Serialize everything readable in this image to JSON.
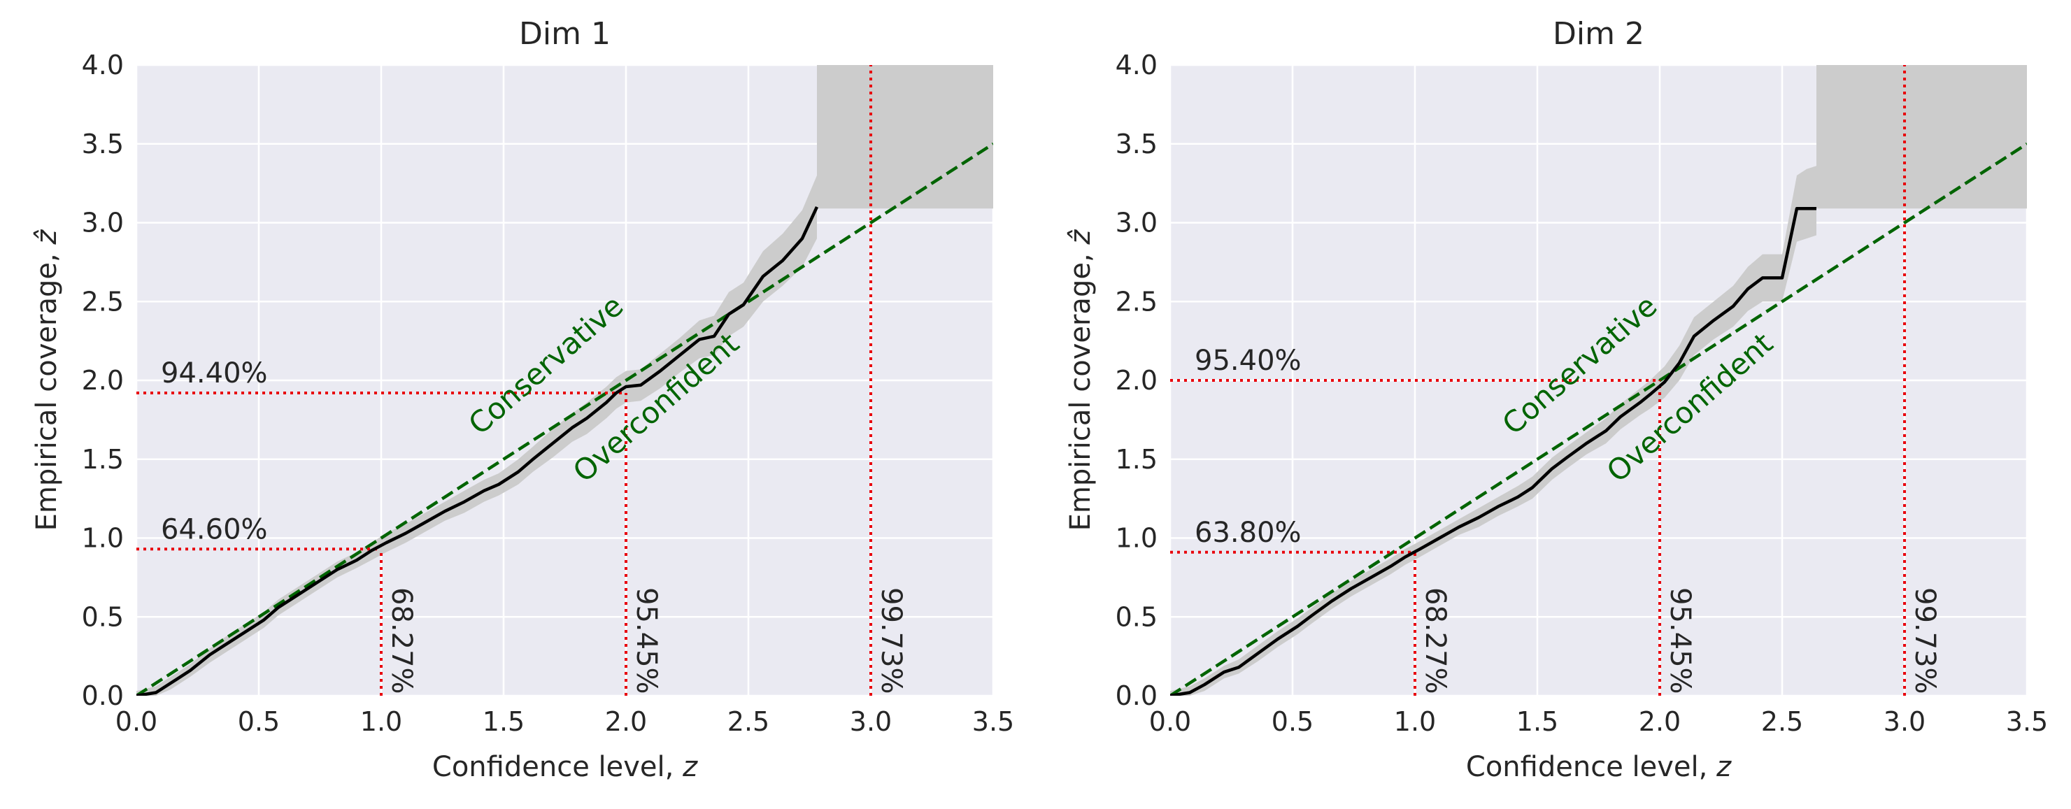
{
  "chart_data": [
    {
      "type": "line",
      "title": "Dim 1",
      "xlabel": "Confidence level, ",
      "xlabel_var": "z",
      "ylabel": "Empirical coverage, ",
      "ylabel_var": "ẑ",
      "xlim": [
        0,
        3.5
      ],
      "ylim": [
        0,
        4.0
      ],
      "xticks": [
        "0.0",
        "0.5",
        "1.0",
        "1.5",
        "2.0",
        "2.5",
        "3.0",
        "3.5"
      ],
      "yticks": [
        "0.0",
        "0.5",
        "1.0",
        "1.5",
        "2.0",
        "2.5",
        "3.0",
        "3.5",
        "4.0"
      ],
      "grid": true,
      "series": [
        {
          "style": "solid-black",
          "x": [
            0.0,
            0.08,
            0.14,
            0.22,
            0.3,
            0.36,
            0.44,
            0.52,
            0.58,
            0.66,
            0.74,
            0.82,
            0.9,
            0.96,
            1.02,
            1.1,
            1.18,
            1.26,
            1.34,
            1.42,
            1.48,
            1.56,
            1.62,
            1.7,
            1.78,
            1.84,
            1.92,
            1.96,
            2.0,
            2.06,
            2.14,
            2.22,
            2.3,
            2.36,
            2.42,
            2.48,
            2.56,
            2.64,
            2.72,
            2.78
          ],
          "y": [
            0.0,
            0.02,
            0.08,
            0.16,
            0.26,
            0.32,
            0.4,
            0.48,
            0.56,
            0.64,
            0.72,
            0.8,
            0.86,
            0.92,
            0.97,
            1.03,
            1.1,
            1.17,
            1.23,
            1.3,
            1.34,
            1.42,
            1.5,
            1.6,
            1.7,
            1.76,
            1.86,
            1.92,
            1.96,
            1.97,
            2.06,
            2.16,
            2.26,
            2.28,
            2.42,
            2.48,
            2.66,
            2.76,
            2.9,
            3.1
          ]
        }
      ],
      "band": {
        "x": [
          0.0,
          0.08,
          0.14,
          0.22,
          0.3,
          0.36,
          0.44,
          0.52,
          0.58,
          0.66,
          0.74,
          0.82,
          0.9,
          0.96,
          1.02,
          1.1,
          1.18,
          1.26,
          1.34,
          1.42,
          1.48,
          1.56,
          1.62,
          1.7,
          1.78,
          1.84,
          1.92,
          1.96,
          2.0,
          2.06,
          2.14,
          2.22,
          2.3,
          2.36,
          2.42,
          2.48,
          2.56,
          2.64,
          2.72,
          2.78
        ],
        "lower": [
          0.0,
          0.0,
          0.04,
          0.12,
          0.21,
          0.27,
          0.35,
          0.43,
          0.51,
          0.59,
          0.67,
          0.75,
          0.81,
          0.86,
          0.91,
          0.97,
          1.04,
          1.11,
          1.16,
          1.23,
          1.27,
          1.34,
          1.42,
          1.51,
          1.61,
          1.66,
          1.76,
          1.82,
          1.86,
          1.87,
          1.95,
          2.05,
          2.14,
          2.16,
          2.28,
          2.34,
          2.5,
          2.6,
          2.72,
          2.9
        ],
        "upper": [
          0.03,
          0.06,
          0.12,
          0.2,
          0.3,
          0.37,
          0.45,
          0.53,
          0.61,
          0.69,
          0.77,
          0.85,
          0.91,
          0.97,
          1.03,
          1.09,
          1.16,
          1.23,
          1.3,
          1.37,
          1.41,
          1.5,
          1.58,
          1.69,
          1.79,
          1.86,
          1.96,
          2.02,
          2.06,
          2.07,
          2.17,
          2.27,
          2.38,
          2.41,
          2.56,
          2.62,
          2.82,
          2.93,
          3.08,
          3.3
        ]
      },
      "corner_band": {
        "x": [
          2.78,
          3.5
        ],
        "lower": 3.09,
        "upper": 4.0
      },
      "reference_line": {
        "x": [
          0,
          3.5
        ],
        "y": [
          0,
          3.5
        ]
      },
      "thresholds": [
        {
          "x": 1.0,
          "y": 0.93,
          "x_label": "68.27%",
          "y_label": "64.60%"
        },
        {
          "x": 2.0,
          "y": 1.92,
          "x_label": "95.45%",
          "y_label": "94.40%"
        },
        {
          "x": 3.0,
          "y": null,
          "x_label": "99.73%",
          "y_label": null
        }
      ],
      "annotations": [
        {
          "text": "Conservative",
          "x": 1.7,
          "y": 2.05
        },
        {
          "text": "Overconfident",
          "x": 2.15,
          "y": 1.78
        }
      ],
      "colors": {
        "line": "#000000",
        "band": "#cccccc",
        "reference": "#006400",
        "threshold": "#e8000b",
        "annotation": "#006400",
        "background": "#eaeaf2",
        "grid": "#ffffff"
      }
    },
    {
      "type": "line",
      "title": "Dim 2",
      "xlabel": "Confidence level, ",
      "xlabel_var": "z",
      "ylabel": "Empirical coverage, ",
      "ylabel_var": "ẑ",
      "xlim": [
        0,
        3.5
      ],
      "ylim": [
        0,
        4.0
      ],
      "xticks": [
        "0.0",
        "0.5",
        "1.0",
        "1.5",
        "2.0",
        "2.5",
        "3.0",
        "3.5"
      ],
      "yticks": [
        "0.0",
        "0.5",
        "1.0",
        "1.5",
        "2.0",
        "2.5",
        "3.0",
        "3.5",
        "4.0"
      ],
      "grid": true,
      "series": [
        {
          "style": "solid-black",
          "x": [
            0.0,
            0.08,
            0.14,
            0.22,
            0.28,
            0.36,
            0.44,
            0.52,
            0.58,
            0.66,
            0.74,
            0.82,
            0.9,
            0.96,
            1.02,
            1.1,
            1.18,
            1.26,
            1.34,
            1.42,
            1.48,
            1.56,
            1.62,
            1.7,
            1.78,
            1.84,
            1.92,
            1.96,
            2.02,
            2.08,
            2.14,
            2.22,
            2.3,
            2.36,
            2.42,
            2.5,
            2.56,
            2.6,
            2.64
          ],
          "y": [
            0.0,
            0.02,
            0.07,
            0.15,
            0.18,
            0.27,
            0.36,
            0.44,
            0.51,
            0.6,
            0.68,
            0.75,
            0.82,
            0.88,
            0.93,
            1.0,
            1.07,
            1.13,
            1.2,
            1.26,
            1.32,
            1.44,
            1.51,
            1.6,
            1.68,
            1.77,
            1.86,
            1.91,
            1.99,
            2.11,
            2.28,
            2.38,
            2.47,
            2.58,
            2.65,
            2.65,
            3.09,
            3.09,
            3.09
          ]
        }
      ],
      "band": {
        "x": [
          0.0,
          0.08,
          0.14,
          0.22,
          0.28,
          0.36,
          0.44,
          0.52,
          0.58,
          0.66,
          0.74,
          0.82,
          0.9,
          0.96,
          1.02,
          1.1,
          1.18,
          1.26,
          1.34,
          1.42,
          1.48,
          1.56,
          1.62,
          1.7,
          1.78,
          1.84,
          1.92,
          1.96,
          2.02,
          2.08,
          2.14,
          2.22,
          2.3,
          2.36,
          2.42,
          2.5,
          2.56,
          2.6,
          2.64
        ],
        "lower": [
          0.0,
          0.0,
          0.03,
          0.11,
          0.14,
          0.22,
          0.31,
          0.39,
          0.46,
          0.55,
          0.63,
          0.7,
          0.77,
          0.83,
          0.88,
          0.95,
          1.02,
          1.07,
          1.14,
          1.2,
          1.25,
          1.37,
          1.44,
          1.53,
          1.6,
          1.69,
          1.78,
          1.82,
          1.89,
          2.0,
          2.16,
          2.26,
          2.34,
          2.44,
          2.5,
          2.5,
          2.88,
          2.9,
          2.92
        ],
        "upper": [
          0.03,
          0.06,
          0.11,
          0.19,
          0.23,
          0.32,
          0.41,
          0.49,
          0.56,
          0.65,
          0.73,
          0.8,
          0.87,
          0.93,
          0.98,
          1.05,
          1.12,
          1.19,
          1.26,
          1.33,
          1.39,
          1.51,
          1.58,
          1.67,
          1.76,
          1.85,
          1.95,
          2.0,
          2.09,
          2.22,
          2.4,
          2.5,
          2.6,
          2.72,
          2.8,
          2.8,
          3.3,
          3.34,
          3.36
        ]
      },
      "corner_band": {
        "x": [
          2.64,
          3.5
        ],
        "lower": 3.09,
        "upper": 4.0
      },
      "reference_line": {
        "x": [
          0,
          3.5
        ],
        "y": [
          0,
          3.5
        ]
      },
      "thresholds": [
        {
          "x": 1.0,
          "y": 0.91,
          "x_label": "68.27%",
          "y_label": "63.80%"
        },
        {
          "x": 2.0,
          "y": 2.0,
          "x_label": "95.45%",
          "y_label": "95.40%"
        },
        {
          "x": 3.0,
          "y": null,
          "x_label": "99.73%",
          "y_label": null
        }
      ],
      "annotations": [
        {
          "text": "Conservative",
          "x": 1.7,
          "y": 2.05
        },
        {
          "text": "Overconfident",
          "x": 2.15,
          "y": 1.78
        }
      ],
      "colors": {
        "line": "#000000",
        "band": "#cccccc",
        "reference": "#006400",
        "threshold": "#e8000b",
        "annotation": "#006400",
        "background": "#eaeaf2",
        "grid": "#ffffff"
      }
    }
  ]
}
